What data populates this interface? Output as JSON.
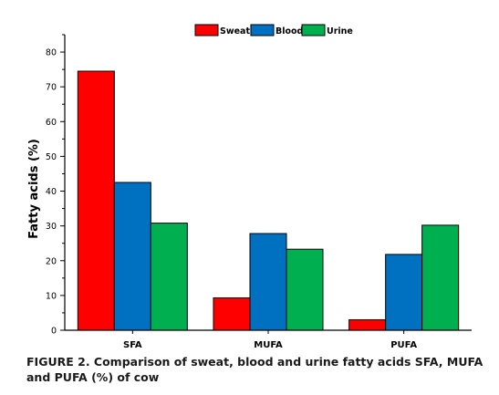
{
  "chart_data": {
    "type": "bar",
    "categories": [
      "SFA",
      "MUFA",
      "PUFA"
    ],
    "series": [
      {
        "name": "Sweat",
        "color": "#fe0000",
        "values": [
          74.5,
          9.3,
          3.0
        ]
      },
      {
        "name": "Blood",
        "color": "#0070c0",
        "values": [
          42.5,
          27.8,
          21.8
        ]
      },
      {
        "name": "Urine",
        "color": "#00b050",
        "values": [
          30.8,
          23.3,
          30.2
        ]
      }
    ],
    "ylabel": "Fatty acids (%)",
    "xlabel": "",
    "ylim": [
      0,
      85
    ],
    "yticks": [
      0,
      10,
      20,
      30,
      40,
      50,
      60,
      70,
      80
    ],
    "legend_position": "top-center",
    "grid": false
  },
  "caption": "FIGURE 2. Comparison of sweat, blood and urine fatty acids SFA, MUFA and PUFA (%) of cow"
}
